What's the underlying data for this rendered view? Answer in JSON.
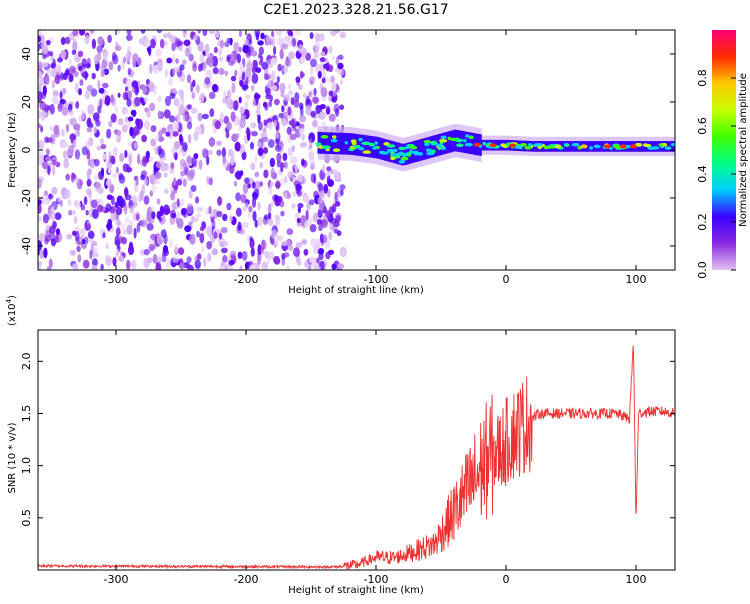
{
  "title": "C2E1.2023.328.21.56.G17",
  "chart_data": [
    {
      "type": "heatmap",
      "xlabel": "Height of straight line (km)",
      "ylabel": "Frequency (Hz)",
      "xlim": [
        -360,
        130
      ],
      "ylim": [
        -50,
        50
      ],
      "xticks": [
        -300,
        -200,
        -100,
        0,
        100
      ],
      "yticks": [
        -40,
        -20,
        0,
        20,
        40
      ],
      "colorbar": {
        "label": "Normalized spectral amplitude",
        "range": [
          0.0,
          1.0
        ],
        "ticks": [
          0.0,
          0.2,
          0.4,
          0.6,
          0.8
        ],
        "colors": [
          "#e2c2f0",
          "#8a2be2",
          "#3a00ff",
          "#00cfff",
          "#00ff88",
          "#40ff00",
          "#c8ff00",
          "#ffc800",
          "#ff2a00",
          "#ff0077"
        ]
      },
      "scatter_region": {
        "x_range": [
          -360,
          -125
        ],
        "y_range": [
          -50,
          50
        ]
      },
      "signal_band": [
        {
          "x": -145,
          "y": 3
        },
        {
          "x": -120,
          "y": 2.5
        },
        {
          "x": -100,
          "y": 1
        },
        {
          "x": -80,
          "y": -2
        },
        {
          "x": -60,
          "y": 1
        },
        {
          "x": -40,
          "y": 4
        },
        {
          "x": -20,
          "y": 2
        },
        {
          "x": 0,
          "y": 2
        },
        {
          "x": 20,
          "y": 1.5
        },
        {
          "x": 60,
          "y": 1.5
        },
        {
          "x": 100,
          "y": 1.5
        },
        {
          "x": 130,
          "y": 1.5
        }
      ]
    },
    {
      "type": "line",
      "xlabel": "Height of straight line (km)",
      "ylabel": "SNR (10 * v/v)",
      "scale_label": "(x10",
      "scale_exp": "4",
      "scale_close": ")",
      "xlim": [
        -360,
        130
      ],
      "ylim": [
        0,
        2.3
      ],
      "xticks": [
        -300,
        -200,
        -100,
        0,
        100
      ],
      "yticks": [
        0.5,
        1.0,
        1.5,
        2.0
      ],
      "ytick_labels": [
        "0.5",
        "1.0",
        "1.5",
        "2.0"
      ],
      "color": "#ee3030",
      "series": [
        {
          "x": [
            -360,
            -150,
            -130,
            -115,
            -100,
            -85,
            -70,
            -55,
            -45,
            -35,
            -25,
            -15,
            -5,
            5,
            15,
            25,
            35,
            50,
            70,
            85,
            95,
            98,
            100,
            102,
            110,
            120,
            130
          ],
          "y": [
            0.04,
            0.03,
            0.03,
            0.05,
            0.12,
            0.12,
            0.18,
            0.25,
            0.45,
            0.65,
            0.85,
            1.05,
            1.15,
            1.3,
            1.4,
            1.5,
            1.5,
            1.5,
            1.5,
            1.5,
            1.45,
            2.2,
            0.45,
            1.5,
            1.52,
            1.52,
            1.5
          ]
        }
      ]
    }
  ]
}
